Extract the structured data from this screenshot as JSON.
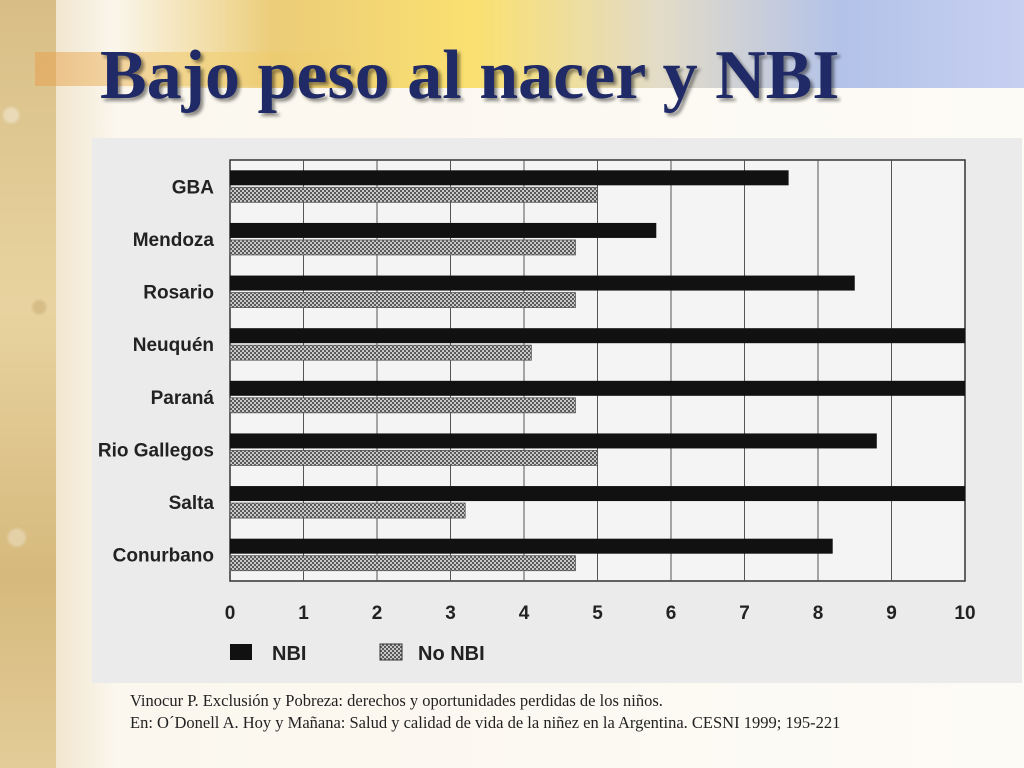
{
  "slide": {
    "title": "Bajo peso al nacer y NBI",
    "source_line1": "Vinocur P. Exclusión y Pobreza: derechos y oportunidades perdidas de los niños.",
    "source_line2": "En: O´Donell A. Hoy y Mañana: Salud y calidad de vida de la niñez en la Argentina. CESNI 1999; 195-221"
  },
  "colors": {
    "title": "#1f2a66",
    "nbi_bar": "#111111",
    "no_nbi_bar": "#9a9a9a",
    "chart_background": "#ebebeb"
  },
  "chart_data": {
    "type": "bar",
    "orientation": "horizontal",
    "categories": [
      "GBA",
      "Mendoza",
      "Rosario",
      "Neuquén",
      "Paraná",
      "Rio Gallegos",
      "Salta",
      "Conurbano"
    ],
    "series": [
      {
        "name": "NBI",
        "values": [
          7.6,
          5.8,
          8.5,
          10.0,
          10.0,
          8.8,
          10.0,
          8.2
        ]
      },
      {
        "name": "No NBI",
        "values": [
          5.0,
          4.7,
          4.7,
          4.1,
          4.7,
          5.0,
          3.2,
          4.7
        ]
      }
    ],
    "x_ticks": [
      "0",
      "1",
      "2",
      "3",
      "4",
      "5",
      "6",
      "7",
      "8",
      "9",
      "10"
    ],
    "xlim": [
      0,
      10
    ],
    "grid": true,
    "legend_position": "bottom-left",
    "xlabel": "",
    "ylabel": ""
  }
}
